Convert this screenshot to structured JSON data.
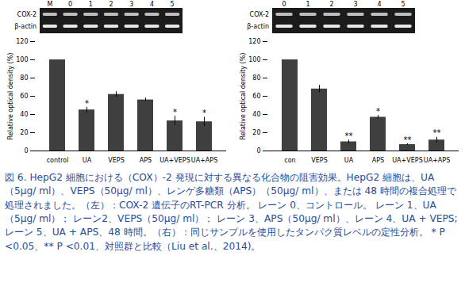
{
  "gels": [
    {
      "lane_labels": [
        "M",
        "0",
        "1",
        "2",
        "3",
        "4",
        "5"
      ],
      "row_labels": [
        "COX-2",
        "β-actin"
      ]
    },
    {
      "lane_labels": [
        "0",
        "1",
        "2",
        "3",
        "4",
        "5"
      ],
      "row_labels": [
        "COX-2",
        "β-actin"
      ]
    }
  ],
  "chart_data": [
    {
      "type": "bar",
      "y_label": "Relative optical density (%)",
      "categories": [
        "control",
        "UA",
        "VEPS",
        "APS",
        "UA+VEPS",
        "UA+APS"
      ],
      "values": [
        100,
        45,
        62,
        56,
        33,
        32
      ],
      "errors": [
        0,
        3,
        3,
        2,
        5,
        5
      ],
      "significance": [
        null,
        "*",
        null,
        null,
        "*",
        "*"
      ],
      "color": "#3f3f3f",
      "ylim": [
        0,
        120
      ],
      "yticks": [
        0,
        20,
        40,
        60,
        80,
        100,
        120
      ],
      "grid": false
    },
    {
      "type": "bar",
      "y_label": "Relative optical density (%)",
      "categories": [
        "con",
        "VEPS",
        "UA",
        "APS",
        "UA+VEPS",
        "UA+APS"
      ],
      "values": [
        100,
        68,
        10,
        37,
        7,
        12
      ],
      "errors": [
        0,
        4,
        2,
        2,
        1,
        3
      ],
      "significance": [
        null,
        null,
        "**",
        "*",
        "**",
        "**"
      ],
      "color": "#3f3f3f",
      "ylim": [
        0,
        120
      ],
      "yticks": [
        0,
        20,
        40,
        60,
        80,
        100,
        120
      ],
      "grid": false
    }
  ],
  "caption": "図 6. HepG2 細胞における（COX）-2 発現に対する異なる化合物の阻害効果。HepG2 細胞は、UA（5μg/ ml）、VEPS（50μg/ ml）、レンゲ多糖類（APS）（50μg/ ml）、または 48 時間の複合処理で処理されました。（左）：COX-2 遺伝子のRT-PCR 分析。 レーン 0、コントロール。 レーン 1、UA（5μg/ ml）； レーン2、VEPS（50μg/ ml）； レーン 3、APS（50μg/ ml）、レーン 4、UA + VEPS; レーン 5、UA + APS、48 時間。（右）：同じサンプルを使用したタンパク質レベルの定性分析。 * P <0.05、** P <0.01、対照群と比較（Liu et al.、2014)。"
}
